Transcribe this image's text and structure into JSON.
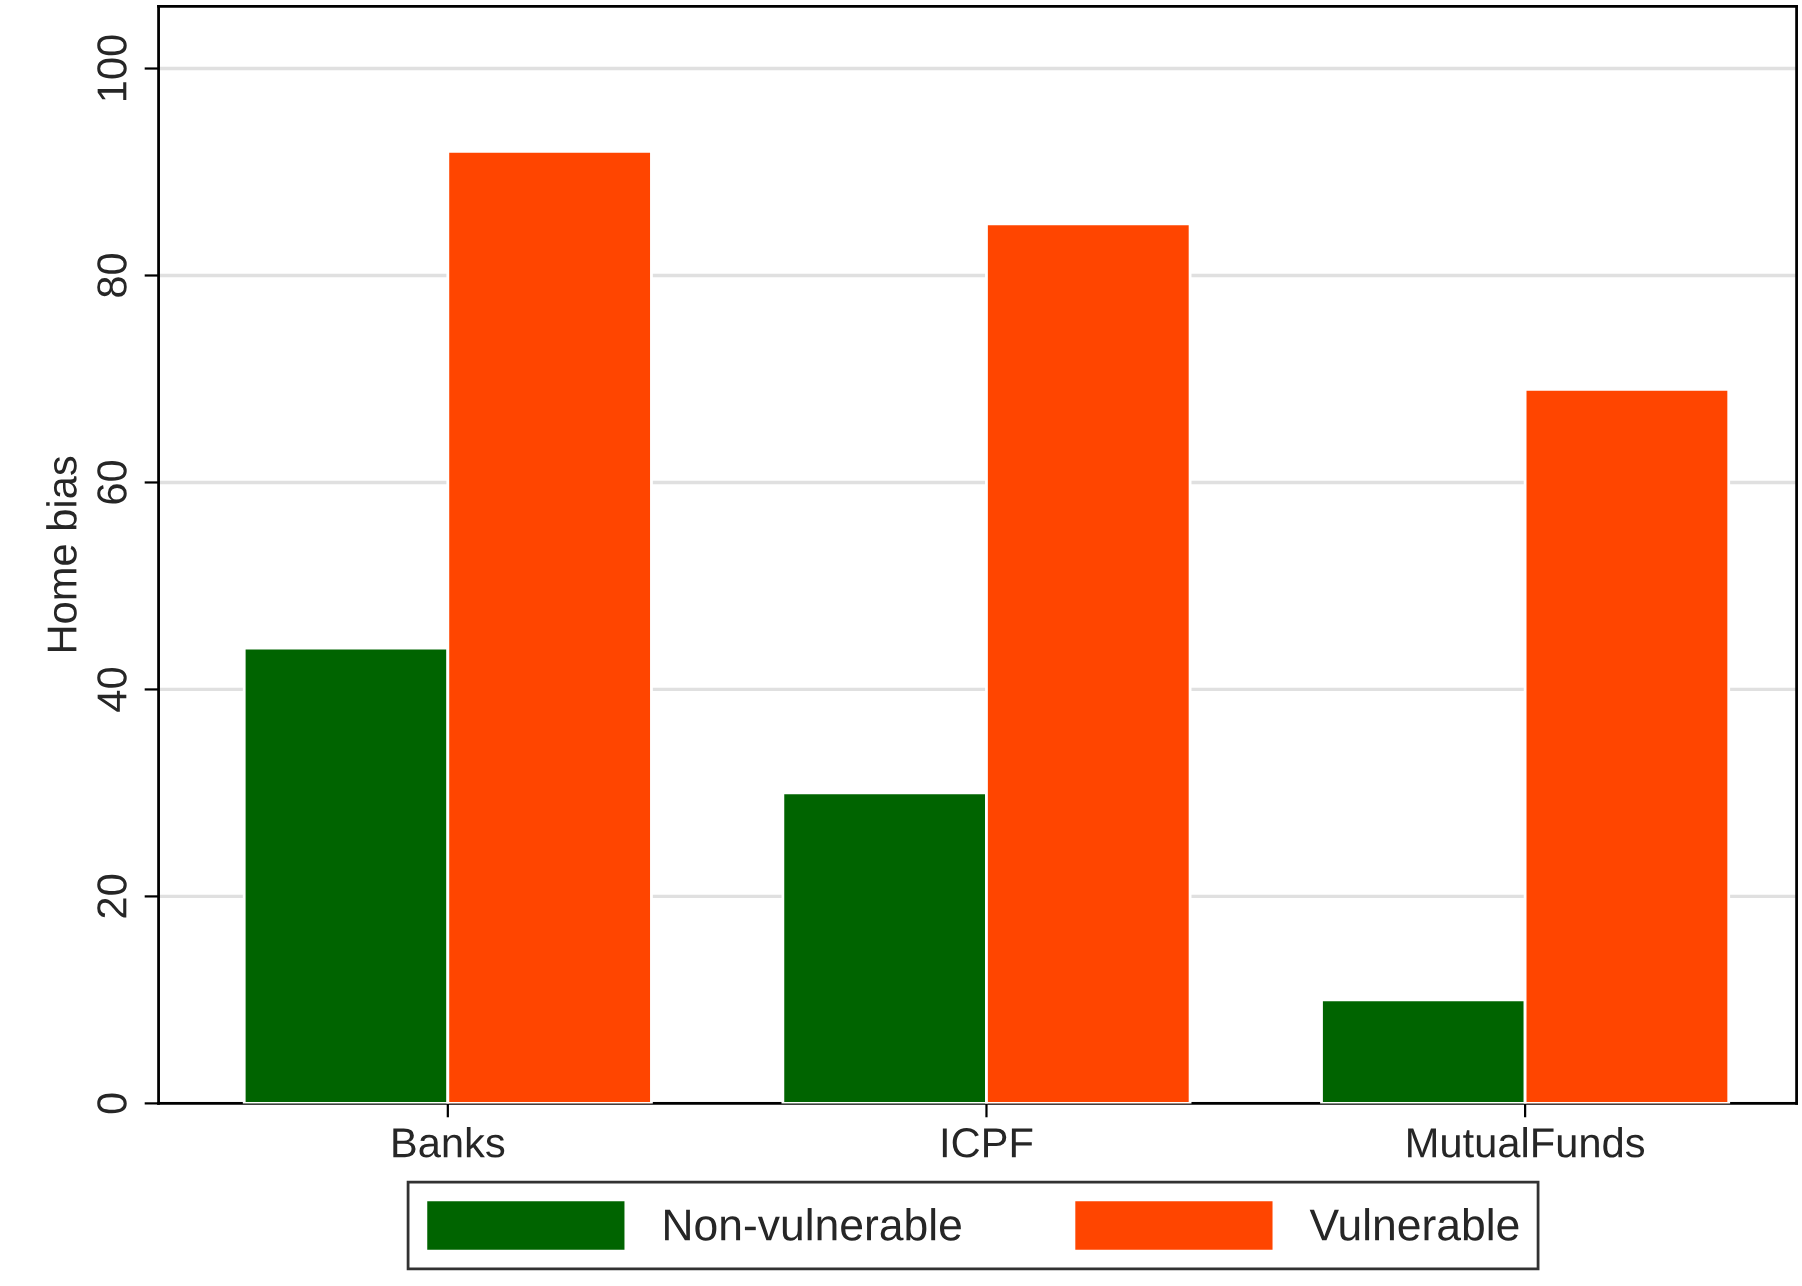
{
  "chart_data": {
    "type": "bar",
    "ylabel": "Home bias",
    "categories": [
      "Banks",
      "ICPF",
      "MutualFunds"
    ],
    "series": [
      {
        "name": "Non-vulnerable",
        "color": "#006400",
        "values": [
          44,
          30,
          10
        ]
      },
      {
        "name": "Vulnerable",
        "color": "#ff4500",
        "values": [
          92,
          85,
          69
        ]
      }
    ],
    "ylim": [
      0,
      106
    ],
    "yticks": [
      0,
      20,
      40,
      60,
      80,
      100
    ],
    "grid": "y",
    "legend": "bottom"
  }
}
